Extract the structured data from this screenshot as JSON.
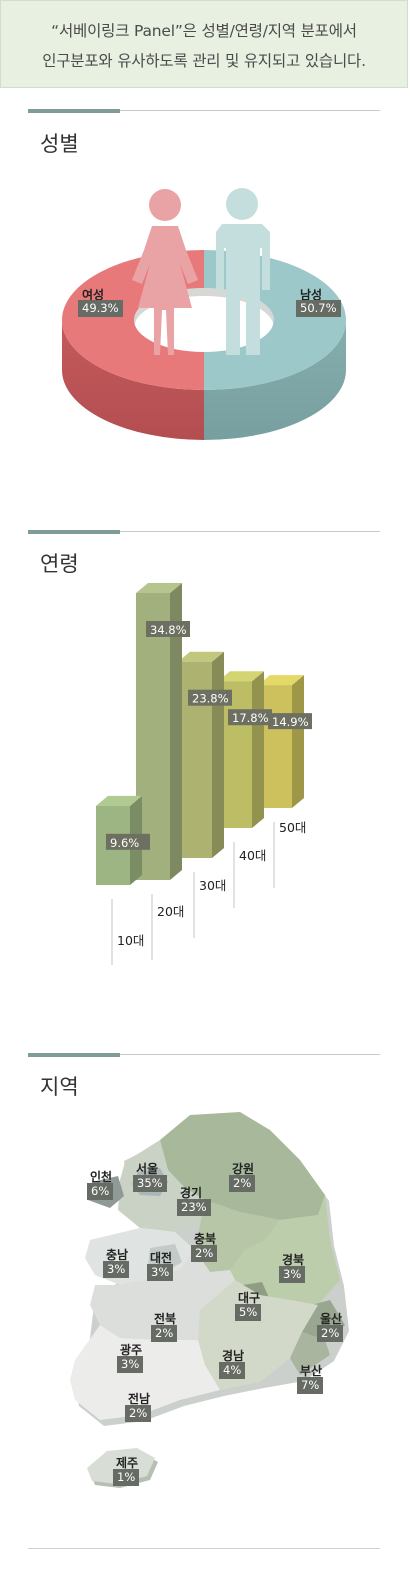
{
  "intro": {
    "line1": "“서베이링크 Panel”은 성별/연령/지역 분포에서",
    "line2": "인구분포와 유사하도록 관리 및 유지되고 있습니다."
  },
  "sections": {
    "gender": "성별",
    "age": "연령",
    "region": "지역"
  },
  "chart_data": [
    {
      "type": "pie",
      "title": "성별",
      "categories": [
        "여성",
        "남성"
      ],
      "values": [
        49.3,
        50.7
      ],
      "value_labels": [
        "49.3%",
        "50.7%"
      ],
      "colors": {
        "female": "#e8797a",
        "male": "#9cc8c9"
      }
    },
    {
      "type": "bar",
      "title": "연령",
      "categories": [
        "10대",
        "20대",
        "30대",
        "40대",
        "50대"
      ],
      "values": [
        9.6,
        34.8,
        23.8,
        17.8,
        14.9
      ],
      "value_labels": [
        "9.6%",
        "34.8%",
        "23.8%",
        "17.8%",
        "14.9%"
      ],
      "colors": [
        "#9cb582",
        "#a2b07e",
        "#adb270",
        "#bdbd66",
        "#ccc15c"
      ]
    },
    {
      "type": "table",
      "title": "지역",
      "categories": [
        "인천",
        "서울",
        "경기",
        "강원",
        "충북",
        "충남",
        "대전",
        "경북",
        "대구",
        "울산",
        "전북",
        "광주",
        "경남",
        "부산",
        "전남",
        "제주"
      ],
      "values": [
        6,
        35,
        23,
        2,
        2,
        3,
        3,
        3,
        5,
        2,
        2,
        3,
        4,
        7,
        2,
        1
      ],
      "value_labels": [
        "6%",
        "35%",
        "23%",
        "2%",
        "2%",
        "3%",
        "3%",
        "3%",
        "5%",
        "2%",
        "2%",
        "3%",
        "4%",
        "7%",
        "2%",
        "1%"
      ]
    }
  ]
}
